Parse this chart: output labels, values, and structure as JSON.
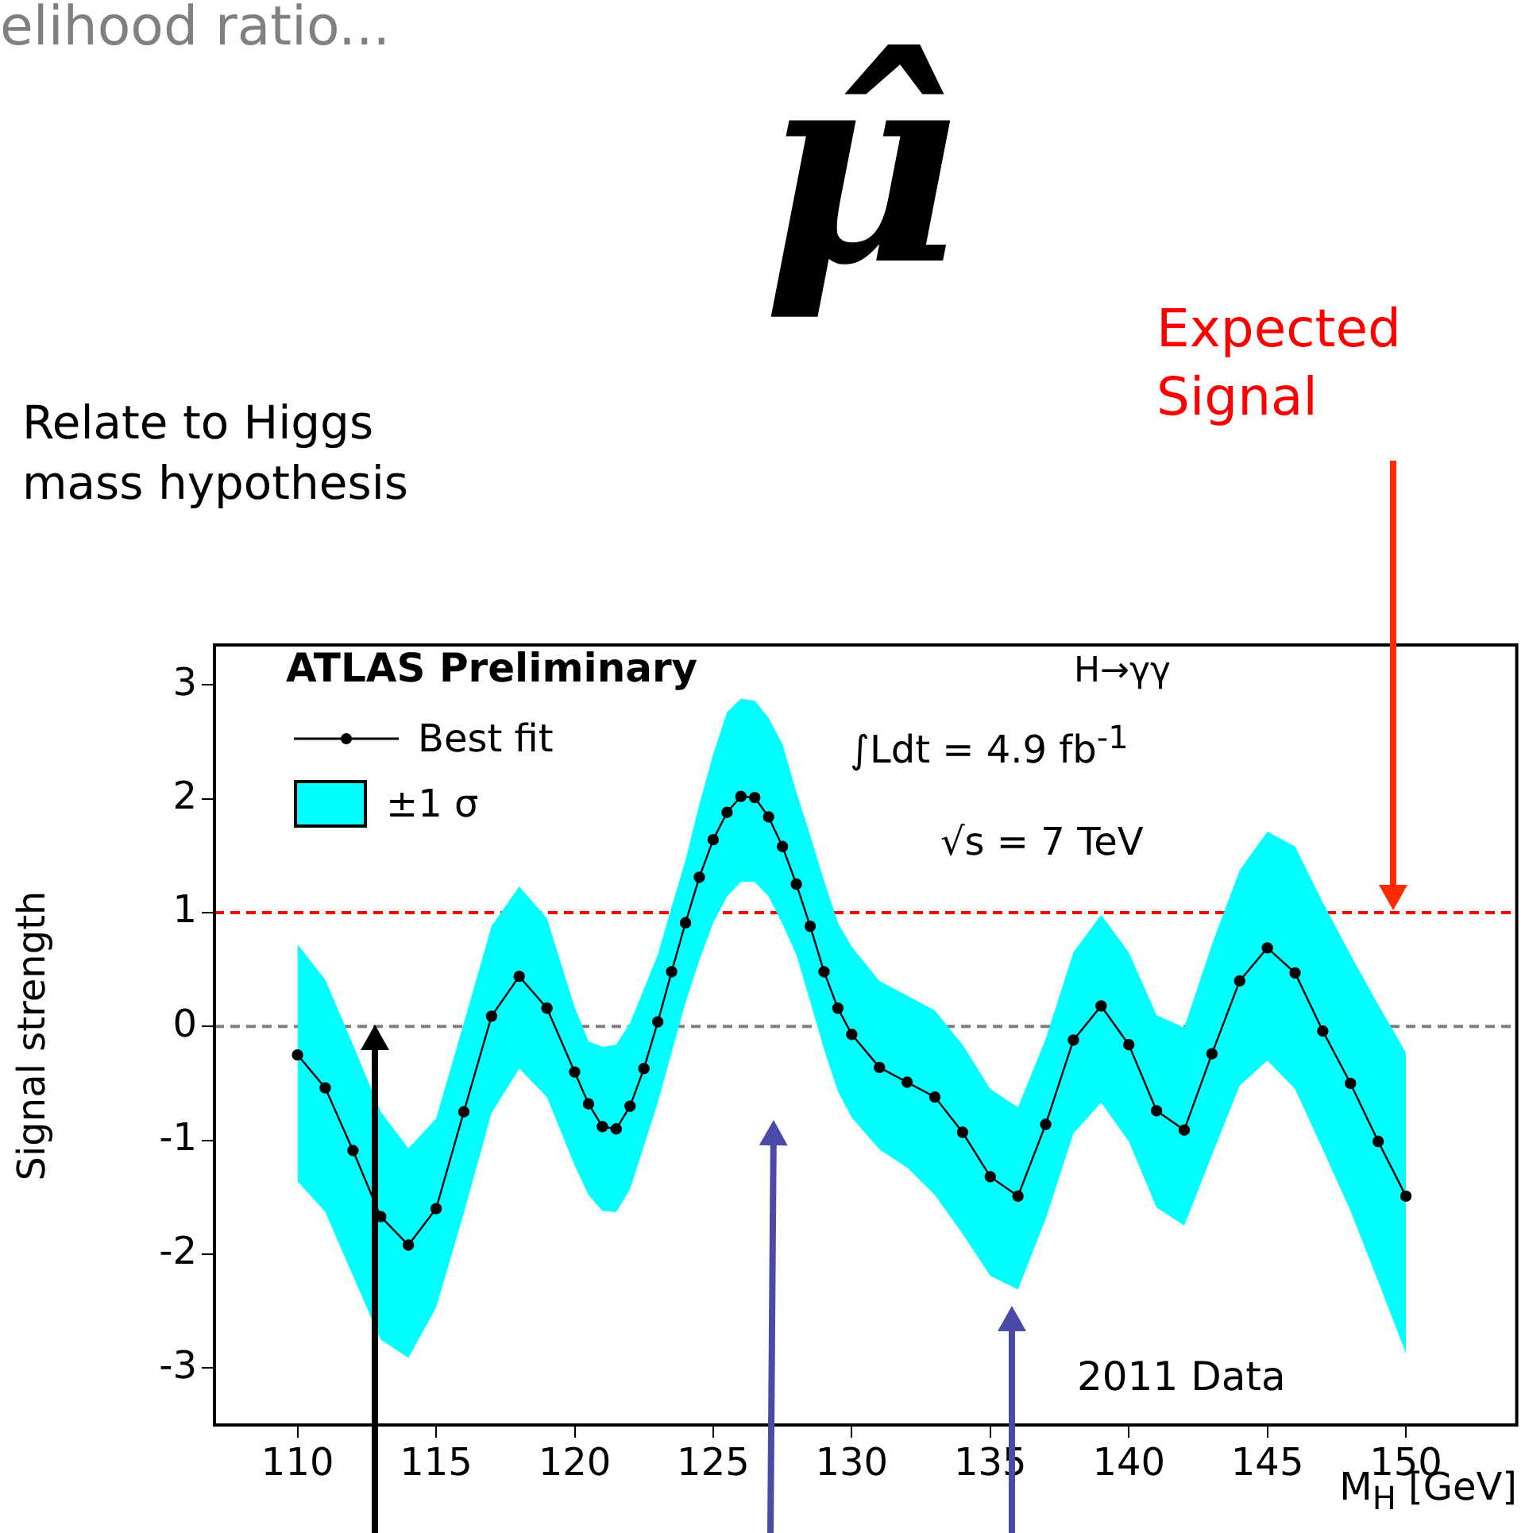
{
  "chart_data": {
    "type": "line",
    "title": "elihood ratio...",
    "xlabel": "M$_{H}$ [GeV]",
    "ylabel": "Signal strength",
    "x": [
      110,
      111,
      112,
      113,
      114,
      115,
      116,
      117,
      118,
      119,
      120,
      120.5,
      121,
      121.5,
      122,
      122.5,
      123,
      123.5,
      124,
      124.5,
      125,
      125.5,
      126,
      126.5,
      127,
      127.5,
      128,
      128.5,
      129,
      129.5,
      130,
      131,
      132,
      133,
      134,
      135,
      136,
      137,
      138,
      139,
      140,
      141,
      142,
      143,
      144,
      145,
      146,
      147,
      148,
      149,
      150
    ],
    "series": [
      {
        "name": "Best fit",
        "color": "#000000",
        "values": [
          -0.25,
          -0.54,
          -1.09,
          -1.67,
          -1.92,
          -1.6,
          -0.75,
          0.09,
          0.44,
          0.16,
          -0.4,
          -0.68,
          -0.88,
          -0.9,
          -0.7,
          -0.37,
          0.04,
          0.48,
          0.91,
          1.31,
          1.64,
          1.88,
          2.02,
          2.01,
          1.84,
          1.58,
          1.25,
          0.88,
          0.48,
          0.16,
          -0.07,
          -0.36,
          -0.49,
          -0.62,
          -0.93,
          -1.32,
          -1.49,
          -0.86,
          -0.12,
          0.18,
          -0.16,
          -0.74,
          -0.91,
          -0.24,
          0.4,
          0.69,
          0.47,
          -0.04,
          -0.5,
          -1.01,
          -1.49
        ],
        "upper": [
          0.72,
          0.41,
          -0.16,
          -0.75,
          -1.07,
          -0.81,
          0.03,
          0.88,
          1.23,
          0.95,
          0.17,
          -0.13,
          -0.18,
          -0.16,
          0.03,
          0.33,
          0.63,
          1.05,
          1.46,
          1.95,
          2.39,
          2.76,
          2.88,
          2.86,
          2.71,
          2.48,
          2.06,
          1.68,
          1.28,
          0.91,
          0.7,
          0.4,
          0.27,
          0.14,
          -0.16,
          -0.55,
          -0.71,
          -0.11,
          0.65,
          0.98,
          0.65,
          0.1,
          -0.01,
          0.72,
          1.37,
          1.71,
          1.58,
          1.09,
          0.63,
          0.19,
          -0.23
        ],
        "lower": [
          -1.36,
          -1.63,
          -2.19,
          -2.75,
          -2.91,
          -2.47,
          -1.64,
          -0.76,
          -0.37,
          -0.62,
          -1.22,
          -1.48,
          -1.62,
          -1.63,
          -1.43,
          -1.05,
          -0.67,
          -0.23,
          0.21,
          0.58,
          0.91,
          1.14,
          1.27,
          1.27,
          1.14,
          0.9,
          0.63,
          0.22,
          -0.2,
          -0.57,
          -0.8,
          -1.08,
          -1.24,
          -1.48,
          -1.82,
          -2.19,
          -2.31,
          -1.69,
          -0.94,
          -0.67,
          -1.01,
          -1.59,
          -1.75,
          -1.13,
          -0.52,
          -0.3,
          -0.55,
          -1.08,
          -1.62,
          -2.24,
          -2.87
        ]
      }
    ],
    "xlim": [
      107,
      154
    ],
    "xticks": [
      110,
      115,
      120,
      125,
      130,
      135,
      140,
      145,
      150
    ],
    "ylim": [
      -3.5,
      3.35
    ],
    "yticks": [
      -3,
      -2,
      -1,
      0,
      1,
      2,
      3
    ],
    "marker": "circle",
    "line_style": "solid",
    "legend": "top left",
    "grid": false,
    "ref_lines": [
      {
        "axis": "y",
        "value": 1,
        "color": "#ff0000",
        "line_style": "dashed"
      },
      {
        "axis": "y",
        "value": 0,
        "color": "#808080",
        "line_style": "dashed"
      }
    ],
    "annotations": [
      "μ̂",
      "Relate to Higgs mass hypothesis",
      "Expected Signal",
      "ATLAS Preliminary",
      "H→γγ",
      "∫Ldt = 4.9 fb$^{-1}$",
      "√s = 7 TeV",
      "2011 Data",
      "±1 σ"
    ]
  }
}
